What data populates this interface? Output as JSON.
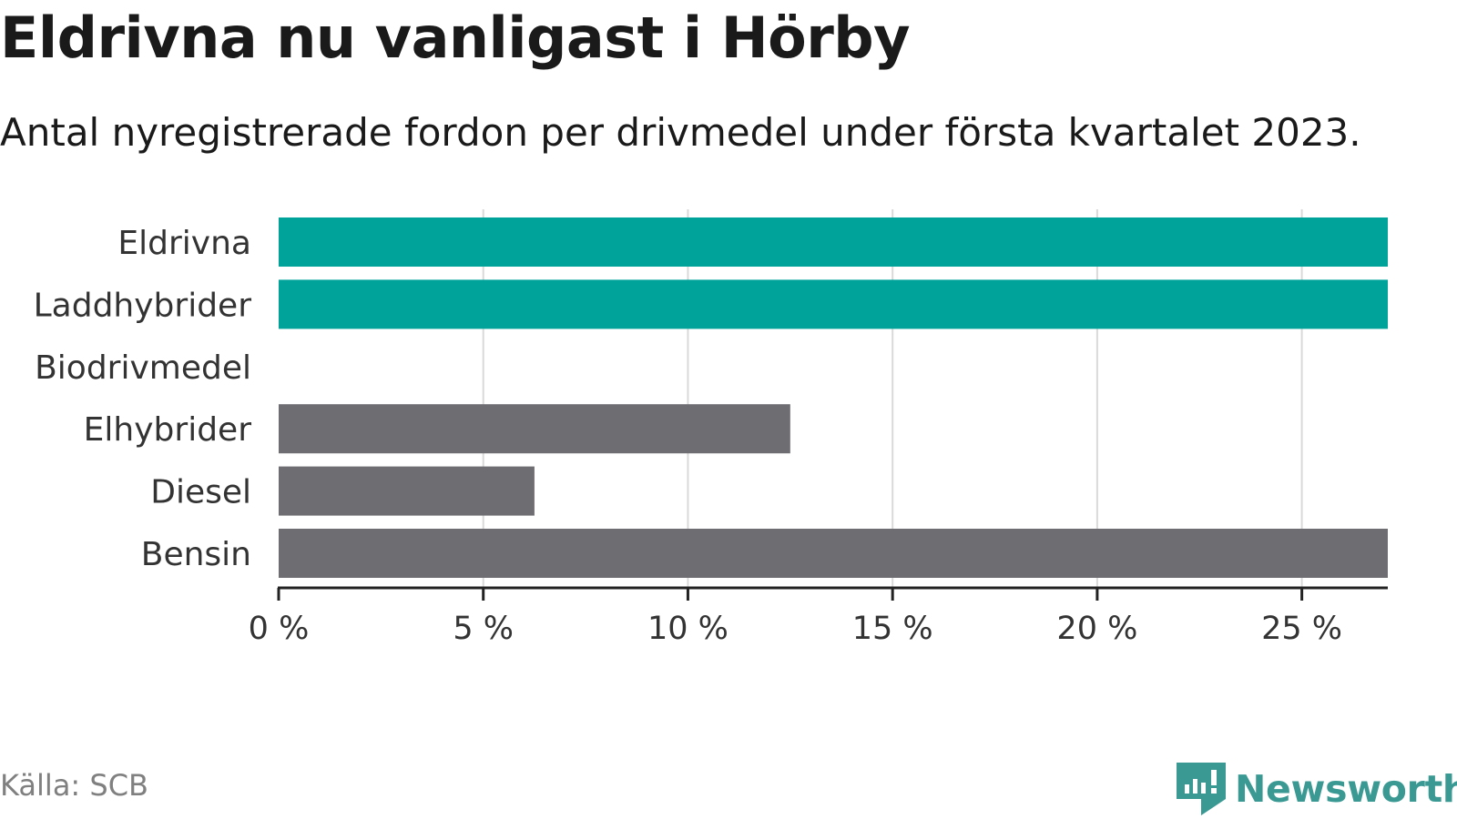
{
  "header": {
    "title": "Eldrivna nu vanligast i Hörby",
    "subtitle": "Antal nyregistrerade fordon per drivmedel under första kvartalet 2023."
  },
  "footer": {
    "source": "Källa: SCB",
    "brand": "Newsworthy"
  },
  "colors": {
    "highlight": "#00a39a",
    "neutral": "#6e6d72",
    "grid": "#d9d9d9",
    "axis": "#222222",
    "brand": "#3a9a93"
  },
  "chart_data": {
    "type": "bar",
    "orientation": "horizontal",
    "categories": [
      "Eldrivna",
      "Laddhybrider",
      "Biodrivmedel",
      "Elhybrider",
      "Diesel",
      "Bensin"
    ],
    "values": [
      27.1,
      27.1,
      0,
      12.5,
      6.25,
      27.1
    ],
    "bar_colors": [
      "#00a39a",
      "#00a39a",
      "#6e6d72",
      "#6e6d72",
      "#6e6d72",
      "#6e6d72"
    ],
    "xticks": [
      0,
      5,
      10,
      15,
      20,
      25
    ],
    "xtick_labels": [
      "0 %",
      "5 %",
      "10 %",
      "15 %",
      "20 %",
      "25 %"
    ],
    "xlim": [
      0,
      27.1
    ],
    "grid": "vertical",
    "legend": "none"
  }
}
